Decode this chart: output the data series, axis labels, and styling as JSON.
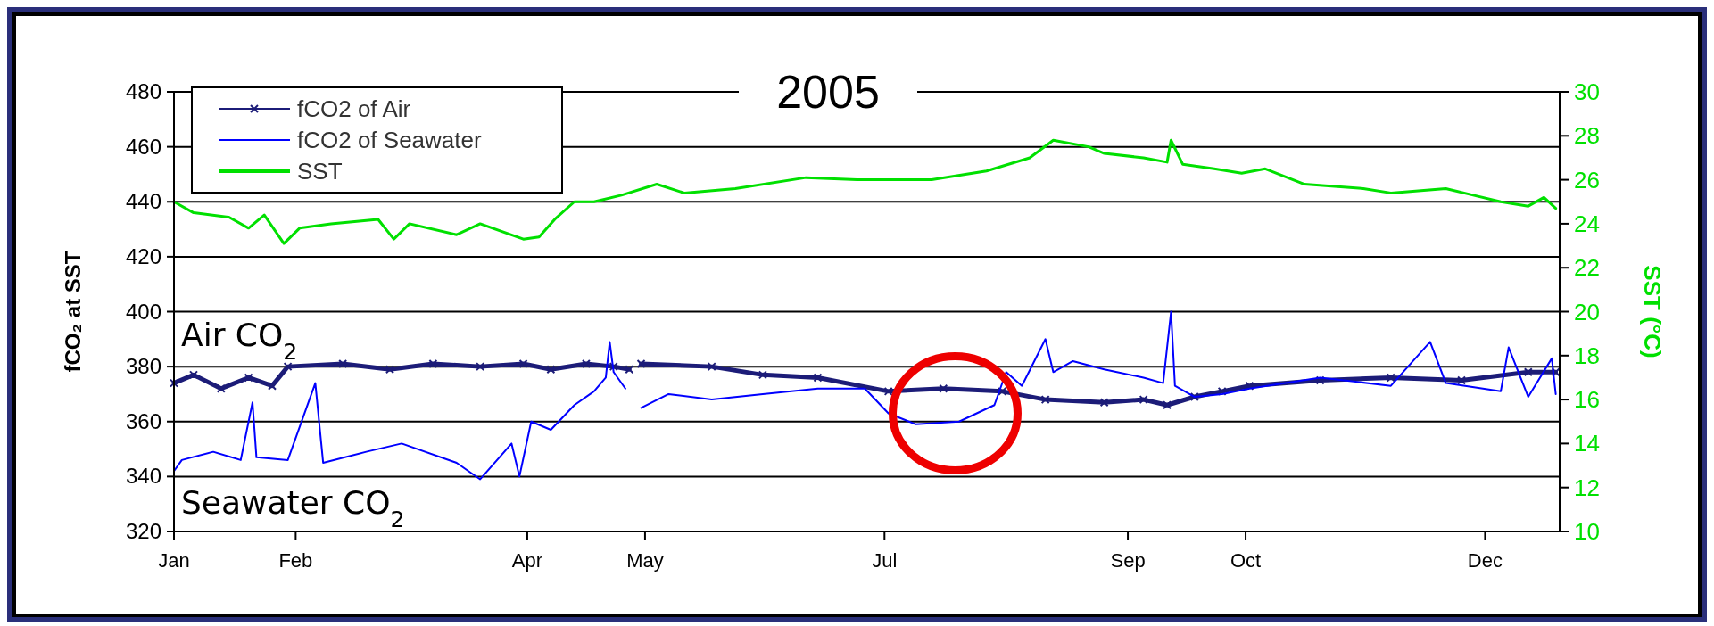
{
  "chart_data": {
    "type": "line",
    "title": "2005",
    "ylabel": "fCO₂ at SST",
    "y2label": "SST (°C)",
    "xlim": [
      "2005-01-01",
      "2005-12-20"
    ],
    "xticks": [
      {
        "value": "2005-01-01",
        "label": "Jan"
      },
      {
        "value": "2005-02-01",
        "label": "Feb"
      },
      {
        "value": "2005-04-01",
        "label": "Apr"
      },
      {
        "value": "2005-05-01",
        "label": "May"
      },
      {
        "value": "2005-07-01",
        "label": "Jul"
      },
      {
        "value": "2005-09-01",
        "label": "Sep"
      },
      {
        "value": "2005-10-01",
        "label": "Oct"
      },
      {
        "value": "2005-12-01",
        "label": "Dec"
      }
    ],
    "ylim": [
      320,
      480
    ],
    "yticks": [
      320,
      340,
      360,
      380,
      400,
      420,
      440,
      460,
      480
    ],
    "y2lim": [
      10,
      30
    ],
    "y2ticks": [
      10,
      12,
      14,
      16,
      18,
      20,
      22,
      24,
      26,
      28,
      30
    ],
    "grid": "y",
    "legend": "top left",
    "annotations": [
      "Air CO$_{2}$",
      "Seawater CO$_{2}$"
    ],
    "series": [
      {
        "name": "fCO2 of Air",
        "color": "#1c1c78",
        "marker": "cross",
        "x": [
          "2005-01-01",
          "2005-01-06",
          "2005-01-13",
          "2005-01-20",
          "2005-01-26",
          "2005-01-30",
          "2005-02-13",
          "2005-02-25",
          "2005-03-08",
          "2005-03-20",
          "2005-03-31",
          "2005-04-07",
          "2005-04-16",
          "2005-04-23",
          "2005-04-27",
          "2005-04-29",
          "2005-04-30",
          "2005-05-18",
          "2005-05-31",
          "2005-06-14",
          "2005-07-02",
          "2005-07-16",
          "2005-07-31",
          "2005-08-11",
          "2005-08-26",
          "2005-09-05",
          "2005-09-11",
          "2005-09-18",
          "2005-09-25",
          "2005-10-02",
          "2005-10-20",
          "2005-11-07",
          "2005-11-25",
          "2005-12-12",
          "2005-12-19"
        ],
        "values": [
          374,
          377,
          372,
          376,
          373,
          380,
          381,
          379,
          381,
          380,
          381,
          379,
          381,
          380,
          379,
          null,
          381,
          380,
          377,
          376,
          371,
          372,
          371,
          368,
          367,
          368,
          366,
          369,
          371,
          373,
          375,
          376,
          375,
          378,
          378
        ]
      },
      {
        "name": "fCO2 of Seawater",
        "color": "#0000ff",
        "marker": "none",
        "x": [
          "2005-01-01",
          "2005-01-03",
          "2005-01-11",
          "2005-01-18",
          "2005-01-21",
          "2005-01-22",
          "2005-01-30",
          "2005-02-06",
          "2005-02-08",
          "2005-02-19",
          "2005-02-28",
          "2005-03-14",
          "2005-03-20",
          "2005-03-28",
          "2005-03-30",
          "2005-04-02",
          "2005-04-07",
          "2005-04-13",
          "2005-04-18",
          "2005-04-21",
          "2005-04-22",
          "2005-04-23",
          "2005-04-26",
          "2005-04-29",
          "2005-04-30",
          "2005-05-07",
          "2005-05-18",
          "2005-05-31",
          "2005-06-14",
          "2005-06-26",
          "2005-07-02",
          "2005-07-09",
          "2005-07-20",
          "2005-07-29",
          "2005-08-01",
          "2005-08-05",
          "2005-08-11",
          "2005-08-13",
          "2005-08-18",
          "2005-08-26",
          "2005-09-05",
          "2005-09-10",
          "2005-09-12",
          "2005-09-13",
          "2005-09-18",
          "2005-09-25",
          "2005-10-02",
          "2005-10-20",
          "2005-11-07",
          "2005-11-17",
          "2005-11-21",
          "2005-12-05",
          "2005-12-07",
          "2005-12-12",
          "2005-12-18",
          "2005-12-19"
        ],
        "values": [
          342,
          346,
          349,
          346,
          367,
          347,
          346,
          374,
          345,
          349,
          352,
          345,
          339,
          352,
          340,
          360,
          357,
          366,
          371,
          376,
          389,
          378,
          372,
          null,
          365,
          370,
          368,
          370,
          372,
          372,
          363,
          359,
          360,
          366,
          378,
          373,
          390,
          378,
          382,
          379,
          376,
          374,
          400,
          373,
          369,
          370,
          372,
          376,
          373,
          389,
          374,
          371,
          387,
          369,
          383,
          370
        ]
      },
      {
        "name": "SST",
        "color": "#00e000",
        "marker": "none",
        "axis": "y2",
        "x": [
          "2005-01-01",
          "2005-01-06",
          "2005-01-15",
          "2005-01-20",
          "2005-01-24",
          "2005-01-29",
          "2005-02-02",
          "2005-02-10",
          "2005-02-22",
          "2005-02-26",
          "2005-03-02",
          "2005-03-14",
          "2005-03-20",
          "2005-03-31",
          "2005-04-04",
          "2005-04-08",
          "2005-04-13",
          "2005-04-18",
          "2005-04-25",
          "2005-05-04",
          "2005-05-11",
          "2005-05-24",
          "2005-06-11",
          "2005-06-24",
          "2005-07-13",
          "2005-07-27",
          "2005-08-07",
          "2005-08-13",
          "2005-08-22",
          "2005-08-26",
          "2005-09-05",
          "2005-09-11",
          "2005-09-12",
          "2005-09-15",
          "2005-09-23",
          "2005-09-30",
          "2005-10-06",
          "2005-10-16",
          "2005-10-31",
          "2005-11-07",
          "2005-11-21",
          "2005-11-28",
          "2005-12-05",
          "2005-12-12",
          "2005-12-16",
          "2005-12-19"
        ],
        "values": [
          25.0,
          24.5,
          24.3,
          23.8,
          24.4,
          23.1,
          23.8,
          24.0,
          24.2,
          23.3,
          24.0,
          23.5,
          24.0,
          23.3,
          23.4,
          24.2,
          25.0,
          25.0,
          25.3,
          25.8,
          25.4,
          25.6,
          26.1,
          26.0,
          26.0,
          26.4,
          27.0,
          27.8,
          27.5,
          27.2,
          27.0,
          26.8,
          27.8,
          26.7,
          26.5,
          26.3,
          26.5,
          25.8,
          25.6,
          25.4,
          25.6,
          25.3,
          25.0,
          24.8,
          25.2,
          24.7
        ]
      }
    ]
  }
}
